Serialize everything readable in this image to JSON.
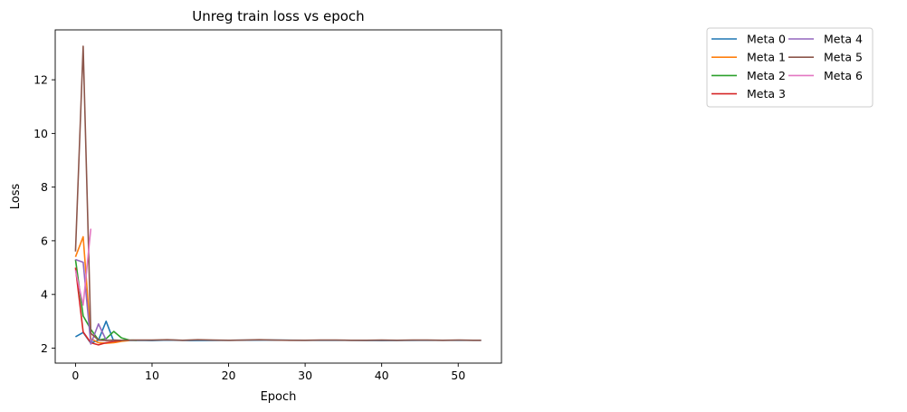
{
  "chart_data": {
    "type": "line",
    "title": "Unreg train loss vs epoch",
    "xlabel": "Epoch",
    "ylabel": "Loss",
    "xlim": [
      -2.65,
      55.65
    ],
    "ylim": [
      1.44,
      13.86
    ],
    "xticks": [
      0,
      10,
      20,
      30,
      40,
      50
    ],
    "yticks": [
      2,
      4,
      6,
      8,
      10,
      12
    ],
    "grid": false,
    "legend": {
      "placement": "outside-right",
      "columns": 2
    },
    "series": [
      {
        "name": "Meta 0",
        "color": "#1f77b4",
        "x": [
          0,
          1,
          2,
          3,
          4,
          5,
          6,
          8,
          10,
          12,
          15,
          20,
          25,
          30,
          35,
          40,
          45,
          50,
          53
        ],
        "y": [
          2.42,
          2.58,
          2.18,
          2.3,
          3.0,
          2.25,
          2.28,
          2.29,
          2.28,
          2.3,
          2.28,
          2.29,
          2.3,
          2.29,
          2.29,
          2.28,
          2.29,
          2.29,
          2.29
        ]
      },
      {
        "name": "Meta 1",
        "color": "#ff7f0e",
        "x": [
          0,
          1,
          2,
          3,
          4,
          5,
          6,
          7
        ],
        "y": [
          5.4,
          6.15,
          2.35,
          2.2,
          2.18,
          2.2,
          2.25,
          2.28
        ]
      },
      {
        "name": "Meta 2",
        "color": "#2ca02c",
        "x": [
          0,
          1,
          2,
          3,
          4,
          5,
          6,
          7,
          8
        ],
        "y": [
          5.3,
          3.2,
          2.7,
          2.3,
          2.35,
          2.62,
          2.38,
          2.3,
          2.29
        ]
      },
      {
        "name": "Meta 3",
        "color": "#d62728",
        "x": [
          0,
          1,
          2,
          3,
          4,
          5,
          6
        ],
        "y": [
          5.0,
          2.6,
          2.2,
          2.12,
          2.2,
          2.25,
          2.28
        ]
      },
      {
        "name": "Meta 4",
        "color": "#9467bd",
        "x": [
          0,
          1,
          2,
          3,
          4,
          5
        ],
        "y": [
          5.3,
          5.2,
          2.15,
          2.9,
          2.3,
          2.28
        ]
      },
      {
        "name": "Meta 5",
        "color": "#8c564b",
        "x": [
          0,
          1,
          2,
          3,
          4,
          5,
          6,
          8,
          10,
          12,
          14,
          16,
          18,
          20,
          22,
          24,
          26,
          28,
          30,
          32,
          34,
          36,
          38,
          40,
          42,
          44,
          46,
          48,
          50,
          52,
          53
        ],
        "y": [
          5.6,
          13.25,
          2.55,
          2.3,
          2.28,
          2.3,
          2.29,
          2.3,
          2.3,
          2.31,
          2.29,
          2.31,
          2.3,
          2.29,
          2.3,
          2.31,
          2.3,
          2.29,
          2.29,
          2.3,
          2.3,
          2.29,
          2.29,
          2.3,
          2.29,
          2.3,
          2.3,
          2.29,
          2.3,
          2.29,
          2.29
        ]
      },
      {
        "name": "Meta 6",
        "color": "#e377c2",
        "x": [
          0,
          1,
          2
        ],
        "y": [
          4.9,
          3.6,
          6.45
        ]
      }
    ]
  }
}
